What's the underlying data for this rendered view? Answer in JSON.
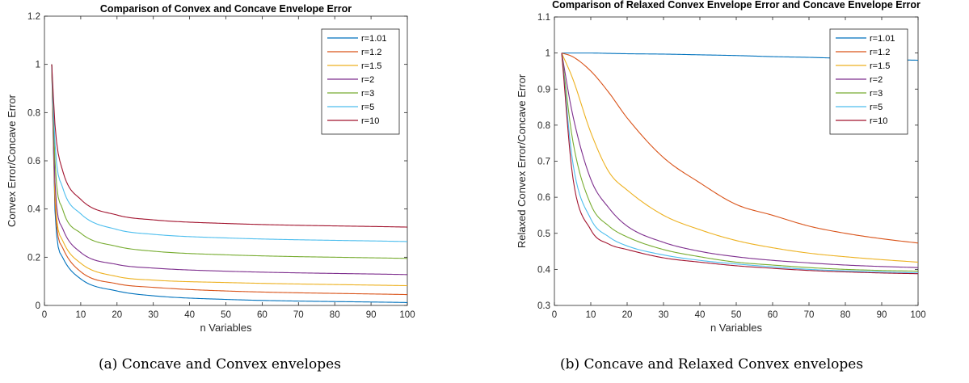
{
  "chart_data": [
    {
      "type": "line",
      "title": "Comparison of Convex and Concave Envelope Error",
      "xlabel": "n Variables",
      "ylabel": "Convex Error/Concave Error",
      "xlim": [
        0,
        100
      ],
      "ylim": [
        0,
        1.2
      ],
      "xticks": [
        "0",
        "10",
        "20",
        "30",
        "40",
        "50",
        "60",
        "70",
        "80",
        "90",
        "100"
      ],
      "yticks": [
        "0",
        "0.2",
        "0.4",
        "0.6",
        "0.8",
        "1",
        "1.2"
      ],
      "grid": false,
      "legend_position": "top-right",
      "x": [
        2,
        3,
        5,
        10,
        20,
        30,
        50,
        100
      ],
      "series": [
        {
          "name": "r=1.01",
          "values": [
            1.0,
            0.36,
            0.2,
            0.11,
            0.06,
            0.04,
            0.025,
            0.012
          ]
        },
        {
          "name": "r=1.2",
          "values": [
            1.0,
            0.4,
            0.24,
            0.14,
            0.09,
            0.075,
            0.06,
            0.045
          ]
        },
        {
          "name": "r=1.5",
          "values": [
            1.0,
            0.43,
            0.27,
            0.175,
            0.12,
            0.105,
            0.095,
            0.082
          ]
        },
        {
          "name": "r=2",
          "values": [
            1.0,
            0.48,
            0.32,
            0.22,
            0.17,
            0.155,
            0.142,
            0.128
          ]
        },
        {
          "name": "r=3",
          "values": [
            1.0,
            0.57,
            0.4,
            0.3,
            0.245,
            0.225,
            0.21,
            0.195
          ]
        },
        {
          "name": "r=5",
          "values": [
            1.0,
            0.65,
            0.49,
            0.38,
            0.315,
            0.295,
            0.28,
            0.265
          ]
        },
        {
          "name": "r=10",
          "values": [
            1.0,
            0.73,
            0.56,
            0.44,
            0.375,
            0.355,
            0.34,
            0.325
          ]
        }
      ],
      "caption": "(a)  Concave and Convex envelopes"
    },
    {
      "type": "line",
      "title": "Comparison of Relaxed Convex Envelope Error and Concave Envelope Error",
      "xlabel": "n Variables",
      "ylabel": "Relaxed Convex Error/Concave Error",
      "xlim": [
        0,
        100
      ],
      "ylim": [
        0.3,
        1.1
      ],
      "xticks": [
        "0",
        "10",
        "20",
        "30",
        "40",
        "50",
        "60",
        "70",
        "80",
        "90",
        "100"
      ],
      "yticks": [
        "0.3",
        "0.4",
        "0.5",
        "0.6",
        "0.7",
        "0.8",
        "0.9",
        "1",
        "1.1"
      ],
      "grid": false,
      "legend_position": "top-right",
      "x": [
        2,
        5,
        10,
        15,
        20,
        30,
        40,
        50,
        60,
        70,
        80,
        90,
        100
      ],
      "series": [
        {
          "name": "r=1.01",
          "values": [
            1.0,
            1.0,
            1.0,
            0.999,
            0.998,
            0.997,
            0.995,
            0.993,
            0.99,
            0.988,
            0.985,
            0.982,
            0.98
          ]
        },
        {
          "name": "r=1.2",
          "values": [
            1.0,
            0.99,
            0.95,
            0.89,
            0.82,
            0.71,
            0.64,
            0.58,
            0.55,
            0.52,
            0.5,
            0.485,
            0.473
          ]
        },
        {
          "name": "r=1.5",
          "values": [
            1.0,
            0.93,
            0.78,
            0.67,
            0.62,
            0.55,
            0.51,
            0.48,
            0.46,
            0.445,
            0.435,
            0.427,
            0.42
          ]
        },
        {
          "name": "r=2",
          "values": [
            1.0,
            0.83,
            0.65,
            0.57,
            0.52,
            0.475,
            0.45,
            0.435,
            0.425,
            0.418,
            0.412,
            0.408,
            0.405
          ]
        },
        {
          "name": "r=3",
          "values": [
            1.0,
            0.76,
            0.58,
            0.52,
            0.49,
            0.455,
            0.435,
            0.42,
            0.412,
            0.405,
            0.4,
            0.397,
            0.395
          ]
        },
        {
          "name": "r=5",
          "values": [
            1.0,
            0.7,
            0.54,
            0.49,
            0.465,
            0.44,
            0.425,
            0.415,
            0.407,
            0.4,
            0.396,
            0.393,
            0.39
          ]
        },
        {
          "name": "r=10",
          "values": [
            1.0,
            0.66,
            0.51,
            0.47,
            0.455,
            0.432,
            0.42,
            0.41,
            0.403,
            0.397,
            0.393,
            0.39,
            0.388
          ]
        }
      ],
      "caption": "(b)  Concave and Relaxed Convex envelopes"
    }
  ],
  "colors": [
    "#0072bd",
    "#d95319",
    "#edb120",
    "#7e2f8e",
    "#77ac30",
    "#4dbeee",
    "#a2142f"
  ]
}
